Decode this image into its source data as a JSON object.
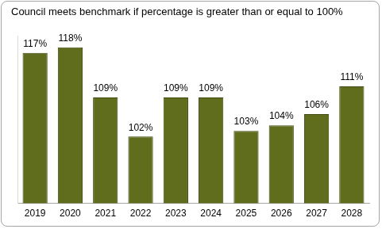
{
  "chart_data": {
    "type": "bar",
    "title": "Council meets benchmark if percentage is greater than or equal to 100%",
    "categories": [
      "2019",
      "2020",
      "2021",
      "2022",
      "2023",
      "2024",
      "2025",
      "2026",
      "2027",
      "2028"
    ],
    "values": [
      117,
      118,
      109,
      102,
      109,
      109,
      103,
      104,
      106,
      111
    ],
    "value_labels": [
      "117%",
      "118%",
      "109%",
      "102%",
      "109%",
      "109%",
      "103%",
      "104%",
      "106%",
      "111%"
    ],
    "color": "#5f6d1c",
    "ylim": [
      90,
      120
    ],
    "grid": false,
    "data_labels": true,
    "tick_labels": "x"
  }
}
